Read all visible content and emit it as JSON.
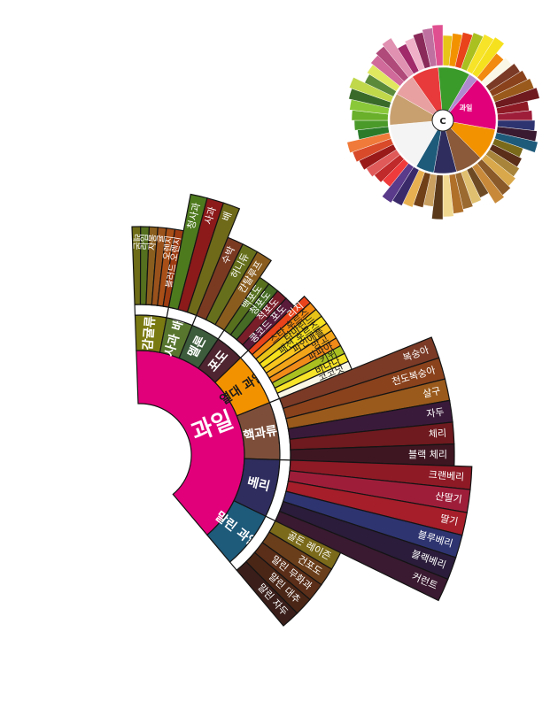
{
  "wheel": {
    "center": {
      "label": "과일",
      "color": "#e2007a"
    },
    "mini_wheel": {
      "center_letter": "C",
      "highlight_label": "과일"
    },
    "categories": [
      {
        "label": "감귤류",
        "color": "#7a7a12",
        "items": [
          {
            "label": "레몬",
            "color": "#6e6c16"
          },
          {
            "label": "라임",
            "color": "#55701e"
          },
          {
            "label": "자몽",
            "color": "#8a5e1e"
          },
          {
            "label": "귤",
            "color": "#9a521c"
          },
          {
            "label": "오렌지",
            "color": "#a84f18"
          },
          {
            "label": "블러드 오렌지",
            "color": "#9d3b12"
          }
        ]
      },
      {
        "label": "사과 배",
        "color": "#58762e",
        "items": [
          {
            "label": "청사과",
            "color": "#4e7a1e"
          },
          {
            "label": "사과",
            "color": "#8c1a1a"
          },
          {
            "label": "배",
            "color": "#6f6a1a"
          }
        ]
      },
      {
        "label": "멜론",
        "color": "#3c5c3c",
        "items": [
          {
            "label": "수박",
            "color": "#7a3a22"
          },
          {
            "label": "허니듀",
            "color": "#66701c"
          },
          {
            "label": "칸탈루프",
            "color": "#8a5d1e"
          }
        ]
      },
      {
        "label": "포도",
        "color": "#4e2530",
        "items": [
          {
            "label": "백포도",
            "color": "#56701e"
          },
          {
            "label": "청포도",
            "color": "#456b24"
          },
          {
            "label": "적포도",
            "color": "#7a1e2a"
          },
          {
            "label": "콩코드 포도",
            "color": "#5a1a3a"
          }
        ]
      },
      {
        "label": "열대 과일",
        "color": "#f39200",
        "items": [
          {
            "label": "리치",
            "color": "#e8431a"
          },
          {
            "label": "스타 후르츠",
            "color": "#f28a10"
          },
          {
            "label": "타마린드",
            "color": "#e8c318"
          },
          {
            "label": "패션 후르츠",
            "color": "#f6e11e"
          },
          {
            "label": "파인애플",
            "color": "#f7c51e"
          },
          {
            "label": "망고",
            "color": "#f3a51a"
          },
          {
            "label": "파파야",
            "color": "#f08a18"
          },
          {
            "label": "키위",
            "color": "#a9c020"
          },
          {
            "label": "바나나",
            "color": "#f7e328"
          },
          {
            "label": "코코넛",
            "color": "#fbf7e6"
          }
        ]
      },
      {
        "label": "핵과류",
        "color": "#7d4f3a",
        "items": [
          {
            "label": "복숭아",
            "color": "#7a3a26"
          },
          {
            "label": "천도복숭아",
            "color": "#8a421c"
          },
          {
            "label": "살구",
            "color": "#9a5a1c"
          },
          {
            "label": "자두",
            "color": "#3a1a3a"
          },
          {
            "label": "체리",
            "color": "#6e1a1e"
          },
          {
            "label": "블랙 체리",
            "color": "#3e1622"
          }
        ]
      },
      {
        "label": "베리",
        "color": "#2f2d5e",
        "items": [
          {
            "label": "크랜베리",
            "color": "#8e1a26"
          },
          {
            "label": "산딸기",
            "color": "#9e1e3a"
          },
          {
            "label": "딸기",
            "color": "#a51e2a"
          },
          {
            "label": "블루베리",
            "color": "#2e3470"
          },
          {
            "label": "블랙베리",
            "color": "#2a1c3a"
          },
          {
            "label": "커런트",
            "color": "#3a1a30"
          }
        ]
      },
      {
        "label": "말린 과일",
        "color": "#1e5a7a",
        "items": [
          {
            "label": "골든 레이즌",
            "color": "#7a6a1a"
          },
          {
            "label": "건포도",
            "color": "#6a3e1a"
          },
          {
            "label": "말린 무화과",
            "color": "#5a2e18"
          },
          {
            "label": "말린 대추",
            "color": "#4a2616"
          },
          {
            "label": "말린 자두",
            "color": "#3a1e1a"
          }
        ]
      }
    ]
  }
}
